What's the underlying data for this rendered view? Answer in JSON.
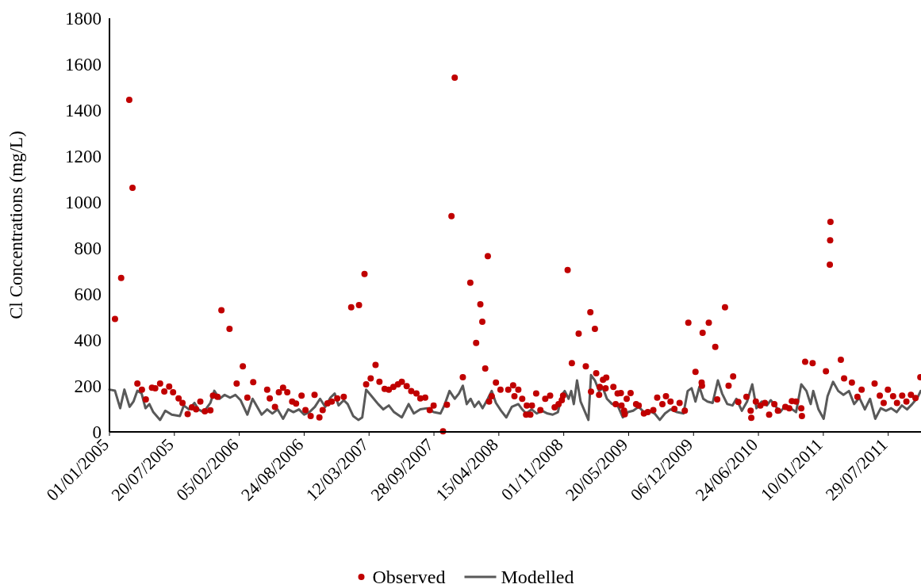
{
  "chart_data": {
    "type": "scatter",
    "ylabel": "Cl Concentrations (mg/L)",
    "ylim": [
      0,
      1800
    ],
    "yticks": [
      0,
      200,
      400,
      600,
      800,
      1000,
      1200,
      1400,
      1600,
      1800
    ],
    "xlim": [
      "2005-01-01",
      "2011-11-07"
    ],
    "xticks": [
      {
        "value": "2005-01-01",
        "label": "01/01/2005"
      },
      {
        "value": "2005-07-20",
        "label": "20/07/2005"
      },
      {
        "value": "2006-02-05",
        "label": "05/02/2006"
      },
      {
        "value": "2006-08-24",
        "label": "24/08/2006"
      },
      {
        "value": "2007-03-12",
        "label": "12/03/2007"
      },
      {
        "value": "2007-09-28",
        "label": "28/09/2007"
      },
      {
        "value": "2008-04-15",
        "label": "15/04/2008"
      },
      {
        "value": "2008-11-01",
        "label": "01/11/2008"
      },
      {
        "value": "2009-05-20",
        "label": "20/05/2009"
      },
      {
        "value": "2009-12-06",
        "label": "06/12/2009"
      },
      {
        "value": "2010-06-24",
        "label": "24/06/2010"
      },
      {
        "value": "2011-01-10",
        "label": "10/01/2011"
      },
      {
        "value": "2011-07-29",
        "label": "29/07/2011"
      }
    ],
    "grid": false,
    "legend": "bottom",
    "series": [
      {
        "name": "Modelled",
        "type": "line",
        "color": "#595959",
        "marker": "none",
        "line_style": "solid",
        "x": [
          "2005-01-01",
          "2005-01-18",
          "2005-02-03",
          "2005-02-16",
          "2005-03-04",
          "2005-03-16",
          "2005-03-28",
          "2005-04-10",
          "2005-04-22",
          "2005-05-04",
          "2005-05-16",
          "2005-06-06",
          "2005-06-22",
          "2005-07-12",
          "2005-08-06",
          "2005-08-18",
          "2005-09-03",
          "2005-09-20",
          "2005-10-02",
          "2005-10-18",
          "2005-11-08",
          "2005-11-20",
          "2005-12-06",
          "2005-12-22",
          "2006-01-08",
          "2006-01-24",
          "2006-02-09",
          "2006-03-02",
          "2006-03-18",
          "2006-03-30",
          "2006-04-15",
          "2006-05-02",
          "2006-05-18",
          "2006-06-03",
          "2006-06-20",
          "2006-07-06",
          "2006-07-22",
          "2006-08-08",
          "2006-08-24",
          "2006-09-09",
          "2006-09-26",
          "2006-10-12",
          "2006-10-28",
          "2006-11-13",
          "2006-11-26",
          "2006-12-08",
          "2006-12-24",
          "2007-01-05",
          "2007-01-22",
          "2007-02-07",
          "2007-02-19",
          "2007-03-03",
          "2007-03-20",
          "2007-04-09",
          "2007-04-25",
          "2007-05-12",
          "2007-05-28",
          "2007-06-21",
          "2007-07-12",
          "2007-07-28",
          "2007-08-17",
          "2007-09-07",
          "2007-09-27",
          "2007-10-18",
          "2007-10-30",
          "2007-11-15",
          "2007-12-01",
          "2007-12-14",
          "2007-12-26",
          "2008-01-07",
          "2008-01-19",
          "2008-01-31",
          "2008-02-13",
          "2008-02-25",
          "2008-03-12",
          "2008-03-24",
          "2008-04-06",
          "2008-04-22",
          "2008-05-08",
          "2008-05-25",
          "2008-06-14",
          "2008-06-26",
          "2008-07-08",
          "2008-07-25",
          "2008-08-10",
          "2008-08-26",
          "2008-09-12",
          "2008-09-28",
          "2008-10-14",
          "2008-10-26",
          "2008-11-04",
          "2008-11-16",
          "2008-11-24",
          "2008-12-02",
          "2008-12-12",
          "2008-12-23",
          "2009-01-16",
          "2009-01-24",
          "2009-02-05",
          "2009-02-18",
          "2009-03-02",
          "2009-03-14",
          "2009-03-30",
          "2009-04-16",
          "2009-05-02",
          "2009-05-18",
          "2009-06-03",
          "2009-06-20",
          "2009-07-06",
          "2009-07-22",
          "2009-08-08",
          "2009-08-24",
          "2009-09-09",
          "2009-09-26",
          "2009-10-16",
          "2009-11-05",
          "2009-11-18",
          "2009-11-30",
          "2009-12-12",
          "2009-12-24",
          "2010-01-05",
          "2010-01-18",
          "2010-02-03",
          "2010-02-19",
          "2010-03-04",
          "2010-03-20",
          "2010-04-05",
          "2010-04-17",
          "2010-05-04",
          "2010-05-20",
          "2010-06-05",
          "2010-06-18",
          "2010-07-04",
          "2010-07-20",
          "2010-08-01",
          "2010-08-14",
          "2010-08-30",
          "2010-09-15",
          "2010-10-01",
          "2010-10-18",
          "2010-11-03",
          "2010-11-19",
          "2010-12-02",
          "2010-12-10",
          "2010-12-26",
          "2011-01-11",
          "2011-01-23",
          "2011-02-09",
          "2011-02-25",
          "2011-03-13",
          "2011-03-30",
          "2011-04-15",
          "2011-05-01",
          "2011-05-18",
          "2011-06-03",
          "2011-06-19",
          "2011-07-06",
          "2011-07-22",
          "2011-08-07",
          "2011-08-24",
          "2011-09-09",
          "2011-09-25",
          "2011-10-11",
          "2011-10-27",
          "2011-11-06"
        ],
        "values": [
          184,
          179,
          103,
          184,
          109,
          132,
          179,
          167,
          103,
          121,
          86,
          52,
          92,
          75,
          69,
          115,
          98,
          126,
          98,
          86,
          126,
          179,
          144,
          161,
          149,
          161,
          138,
          75,
          144,
          115,
          75,
          98,
          80,
          98,
          57,
          98,
          86,
          98,
          75,
          86,
          109,
          144,
          109,
          149,
          167,
          115,
          138,
          121,
          69,
          52,
          63,
          184,
          155,
          121,
          98,
          115,
          86,
          63,
          121,
          80,
          98,
          103,
          86,
          80,
          115,
          178,
          144,
          167,
          201,
          121,
          144,
          109,
          132,
          103,
          144,
          178,
          126,
          92,
          63,
          109,
          121,
          98,
          80,
          98,
          80,
          92,
          80,
          75,
          86,
          161,
          178,
          144,
          178,
          121,
          224,
          132,
          52,
          247,
          224,
          178,
          190,
          144,
          121,
          115,
          63,
          86,
          92,
          109,
          86,
          92,
          80,
          52,
          80,
          98,
          86,
          80,
          178,
          190,
          132,
          196,
          144,
          132,
          126,
          224,
          167,
          121,
          115,
          144,
          92,
          132,
          207,
          103,
          132,
          115,
          138,
          115,
          86,
          115,
          103,
          86,
          207,
          178,
          121,
          178,
          98,
          57,
          155,
          218,
          178,
          161,
          178,
          121,
          149,
          98,
          144,
          57,
          103,
          92,
          103,
          86,
          115,
          98,
          121,
          149,
          178
        ]
      },
      {
        "name": "Observed",
        "type": "scatter",
        "color": "#c00000",
        "marker": "circle",
        "x": [
          "2005-01-18",
          "2005-02-06",
          "2005-03-03",
          "2005-03-13",
          "2005-03-28",
          "2005-04-11",
          "2005-04-23",
          "2005-05-12",
          "2005-05-22",
          "2005-06-06",
          "2005-06-19",
          "2005-07-04",
          "2005-07-16",
          "2005-08-02",
          "2005-08-14",
          "2005-08-30",
          "2005-09-12",
          "2005-09-25",
          "2005-10-08",
          "2005-10-22",
          "2005-11-08",
          "2005-11-16",
          "2005-11-30",
          "2005-12-12",
          "2006-01-06",
          "2006-01-28",
          "2006-02-16",
          "2006-03-02",
          "2006-03-20",
          "2006-05-02",
          "2006-05-10",
          "2006-05-26",
          "2006-06-07",
          "2006-06-20",
          "2006-07-03",
          "2006-07-18",
          "2006-07-30",
          "2006-08-16",
          "2006-08-28",
          "2006-09-13",
          "2006-09-25",
          "2006-10-10",
          "2006-10-20",
          "2006-11-04",
          "2006-11-17",
          "2006-12-04",
          "2006-12-24",
          "2007-01-16",
          "2007-02-09",
          "2007-02-26",
          "2007-03-03",
          "2007-03-17",
          "2007-04-01",
          "2007-04-13",
          "2007-04-29",
          "2007-05-12",
          "2007-05-26",
          "2007-06-09",
          "2007-06-21",
          "2007-07-06",
          "2007-07-20",
          "2007-08-05",
          "2007-08-17",
          "2007-09-01",
          "2007-09-15",
          "2007-09-27",
          "2007-10-26",
          "2007-11-07",
          "2007-11-21",
          "2007-12-01",
          "2007-12-26",
          "2008-01-18",
          "2008-02-05",
          "2008-02-18",
          "2008-02-24",
          "2008-03-04",
          "2008-03-12",
          "2008-03-16",
          "2008-03-24",
          "2008-04-06",
          "2008-04-20",
          "2008-05-14",
          "2008-05-29",
          "2008-06-02",
          "2008-06-14",
          "2008-06-26",
          "2008-07-08",
          "2008-07-10",
          "2008-07-21",
          "2008-07-26",
          "2008-08-08",
          "2008-08-21",
          "2008-09-05",
          "2008-09-20",
          "2008-10-04",
          "2008-10-16",
          "2008-10-26",
          "2008-10-30",
          "2008-11-13",
          "2008-11-26",
          "2008-12-17",
          "2009-01-08",
          "2009-01-22",
          "2009-01-24",
          "2009-02-05",
          "2009-02-09",
          "2009-02-18",
          "2009-02-20",
          "2009-03-02",
          "2009-03-10",
          "2009-03-12",
          "2009-04-03",
          "2009-04-10",
          "2009-04-16",
          "2009-04-26",
          "2009-04-28",
          "2009-05-06",
          "2009-05-08",
          "2009-05-14",
          "2009-05-26",
          "2009-06-12",
          "2009-06-20",
          "2009-07-06",
          "2009-07-18",
          "2009-08-04",
          "2009-08-16",
          "2009-09-01",
          "2009-09-12",
          "2009-09-26",
          "2009-10-08",
          "2009-10-24",
          "2009-11-09",
          "2009-11-20",
          "2009-12-12",
          "2009-12-31",
          "2010-01-01",
          "2010-01-03",
          "2010-01-22",
          "2010-02-11",
          "2010-02-17",
          "2010-03-13",
          "2010-03-24",
          "2010-04-07",
          "2010-04-23",
          "2010-05-18",
          "2010-05-31",
          "2010-06-02",
          "2010-06-16",
          "2010-06-30",
          "2010-07-14",
          "2010-07-27",
          "2010-08-12",
          "2010-08-23",
          "2010-09-15",
          "2010-09-27",
          "2010-10-05",
          "2010-10-18",
          "2010-11-03",
          "2010-11-05",
          "2010-11-15",
          "2010-12-08",
          "2011-01-18",
          "2011-01-30",
          "2011-01-31",
          "2011-02-01",
          "2011-03-05",
          "2011-03-15",
          "2011-04-08",
          "2011-04-25",
          "2011-05-08",
          "2011-06-17",
          "2011-07-03",
          "2011-07-15",
          "2011-07-28",
          "2011-08-13",
          "2011-08-25",
          "2011-09-10",
          "2011-09-23",
          "2011-10-07",
          "2011-10-21",
          "2011-11-05"
        ],
        "values": [
          491,
          670,
          1445,
          1062,
          210,
          184,
          141,
          192,
          190,
          210,
          176,
          197,
          172,
          146,
          126,
          78,
          107,
          98,
          132,
          90,
          94,
          158,
          153,
          529,
          448,
          210,
          285,
          149,
          216,
          184,
          146,
          109,
          172,
          192,
          172,
          132,
          123,
          158,
          95,
          69,
          161,
          63,
          95,
          124,
          132,
          146,
          153,
          542,
          552,
          687,
          207,
          233,
          291,
          218,
          187,
          184,
          196,
          207,
          218,
          199,
          178,
          167,
          146,
          149,
          95,
          115,
          3,
          118,
          939,
          1541,
          238,
          649,
          387,
          555,
          479,
          276,
          765,
          132,
          155,
          215,
          184,
          184,
          203,
          155,
          184,
          144,
          75,
          115,
          75,
          115,
          167,
          95,
          144,
          158,
          107,
          121,
          138,
          158,
          704,
          299,
          428,
          285,
          521,
          175,
          448,
          255,
          161,
          196,
          227,
          190,
          236,
          196,
          121,
          167,
          169,
          115,
          92,
          77,
          144,
          169,
          121,
          115,
          80,
          86,
          95,
          149,
          121,
          155,
          132,
          100,
          126,
          92,
          475,
          261,
          215,
          201,
          431,
          475,
          370,
          141,
          542,
          201,
          241,
          130,
          153,
          92,
          61,
          132,
          115,
          126,
          75,
          121,
          92,
          109,
          103,
          134,
          132,
          103,
          69,
          305,
          299,
          264,
          728,
          834,
          914,
          314,
          233,
          215,
          153,
          184,
          210,
          158,
          126,
          184,
          155,
          126,
          158,
          132,
          161,
          147,
          238
        ]
      }
    ]
  }
}
